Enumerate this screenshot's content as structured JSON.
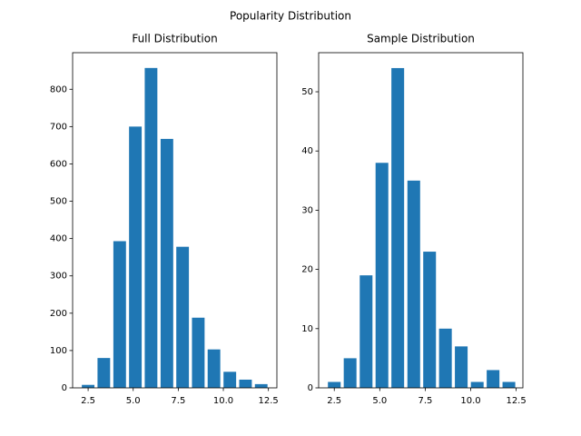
{
  "title": "Popularity Distribution",
  "chart_data": [
    {
      "type": "bar",
      "title": "Full Distribution",
      "color": "#1f77b4",
      "bar_width": 0.7,
      "x": [
        2.5,
        3.37,
        4.25,
        5.12,
        5.99,
        6.87,
        7.74,
        8.61,
        9.48,
        10.36,
        11.23,
        12.1
      ],
      "values": [
        8,
        80,
        393,
        700,
        857,
        667,
        378,
        188,
        103,
        43,
        22,
        10
      ],
      "xlim": [
        1.64,
        12.97
      ],
      "ylim": [
        0,
        898
      ],
      "xticks": [
        {
          "value": 2.5,
          "label": "2.5"
        },
        {
          "value": 5,
          "label": "5.0"
        },
        {
          "value": 7.5,
          "label": "7.5"
        },
        {
          "value": 10,
          "label": "10.0"
        },
        {
          "value": 12.5,
          "label": "12.5"
        }
      ],
      "yticks": [
        0,
        100,
        200,
        300,
        400,
        500,
        600,
        700,
        800
      ]
    },
    {
      "type": "bar",
      "title": "Sample Distribution",
      "color": "#1f77b4",
      "bar_width": 0.7,
      "x": [
        2.5,
        3.37,
        4.25,
        5.12,
        5.99,
        6.87,
        7.74,
        8.61,
        9.48,
        10.36,
        11.23,
        12.1
      ],
      "values": [
        1,
        5,
        19,
        38,
        54,
        35,
        23,
        10,
        7,
        1,
        3,
        1
      ],
      "xlim": [
        1.64,
        12.87
      ],
      "ylim": [
        0,
        56.6
      ],
      "xticks": [
        {
          "value": 2.5,
          "label": "2.5"
        },
        {
          "value": 5,
          "label": "5.0"
        },
        {
          "value": 7.5,
          "label": "7.5"
        },
        {
          "value": 10,
          "label": "10.0"
        },
        {
          "value": 12.5,
          "label": "12.5"
        }
      ],
      "yticks": [
        0,
        10,
        20,
        30,
        40,
        50
      ]
    }
  ]
}
